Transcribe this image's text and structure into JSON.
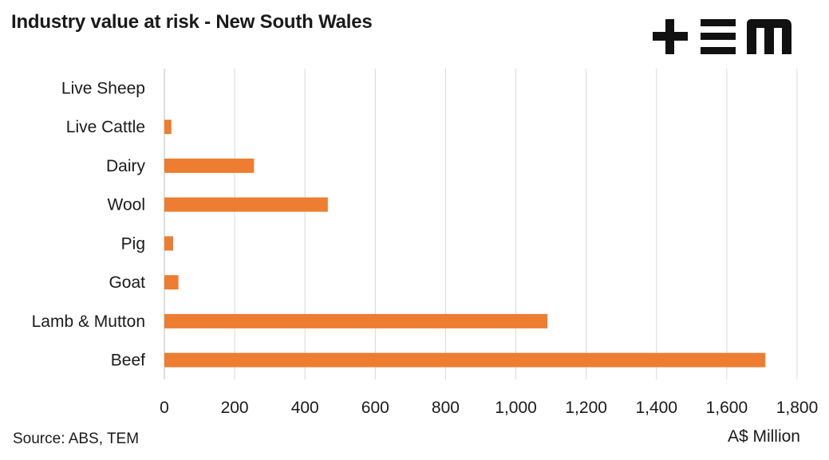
{
  "title": "Industry value at risk - New South Wales",
  "logo": {
    "icon": "tem-logo-icon",
    "text": "TEM",
    "color": "#111111"
  },
  "source": "Source: ABS, TEM",
  "chart_data": {
    "type": "bar",
    "orientation": "horizontal",
    "categories": [
      "Live Sheep",
      "Live Cattle",
      "Dairy",
      "Wool",
      "Pig",
      "Goat",
      "Lamb & Mutton",
      "Beef"
    ],
    "values": [
      0,
      20,
      255,
      465,
      25,
      40,
      1090,
      1710
    ],
    "xlabel": "A$ Million",
    "ylabel": "",
    "xlim": [
      0,
      1800
    ],
    "xticks": [
      "0",
      "200",
      "400",
      "600",
      "800",
      "1,000",
      "1,200",
      "1,400",
      "1,600",
      "1,800"
    ],
    "grid": "vertical",
    "legend": "none",
    "bar_color": "#ED7D31",
    "grid_color": "#D9D9D9"
  }
}
